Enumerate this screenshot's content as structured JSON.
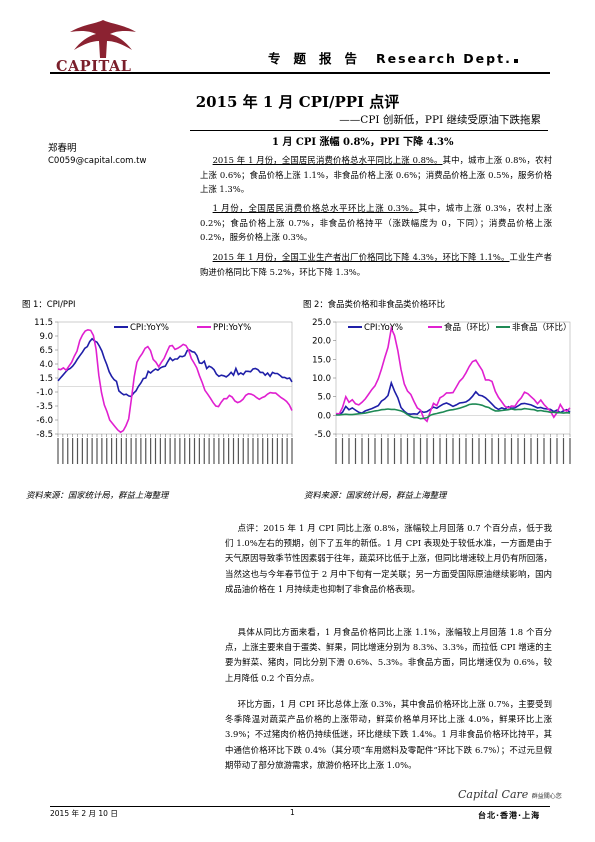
{
  "header": {
    "logo_text": "CAPITAL",
    "doc_type_cn": "专题报告",
    "dept": "Research Dept."
  },
  "title": {
    "main": "2015 年 1 月 CPI/PPI 点评",
    "sub": "——CPI 创新低，PPI 继续受原油下跌拖累"
  },
  "author": {
    "name": "郑春明",
    "email": "C0059@capital.com.tw"
  },
  "summary": {
    "headline": "1 月 CPI 涨幅 0.8%，PPI 下降 4.3%",
    "p1_u": "2015 年 1 月份，全国居民消费价格总水平同比上涨 0.8%。",
    "p1_rest": "其中，城市上涨 0.8%，农村上涨 0.6%；食品价格上涨 1.1%，非食品价格上涨 0.6%；消费品价格上涨 0.5%，服务价格上涨 1.3%。",
    "p2_u": "1 月份，全国居民消费价格总水平环比上涨 0.3%。",
    "p2_rest": "其中，城市上涨 0.3%，农村上涨 0.2%；食品价格上涨 0.7%，非食品价格持平（涨跌幅度为 0，下同）；消费品价格上涨 0.2%，服务价格上涨 0.3%。",
    "p3_u": "2015 年 1 月份，全国工业生产者出厂价格同比下降 4.3%，环比下降 1.1%。",
    "p3_rest": "工业生产者购进价格同比下降 5.2%，环比下降 1.3%。"
  },
  "figures": {
    "fig1_caption": "图 1：CPI/PPI",
    "fig2_caption": "图 2：食品类价格和非食品类价格环比",
    "source1": "资料来源：国家统计局，群益上海整理",
    "source2": "资料来源：国家统计局，群益上海整理"
  },
  "chart_data": [
    {
      "type": "line",
      "title": "",
      "ylim": [
        -8.5,
        11.5
      ],
      "yticks": [
        11.5,
        9.0,
        6.5,
        4.0,
        1.5,
        -1.0,
        -3.5,
        -6.0,
        -8.5
      ],
      "ytick_labels": [
        "11.5",
        "9.0",
        "6.5",
        "4.0",
        "1.5",
        "-1.0",
        "-3.5",
        "-6.0",
        "-8.5"
      ],
      "legend_position": "top",
      "series": [
        {
          "name": "CPI:YoY%",
          "color": "#1f1fa8",
          "values": [
            1.0,
            1.5,
            2.0,
            2.5,
            3.0,
            3.2,
            3.6,
            4.2,
            4.9,
            5.5,
            6.1,
            6.8,
            7.1,
            8.0,
            8.5,
            8.1,
            7.9,
            7.2,
            6.3,
            5.0,
            3.9,
            2.6,
            1.8,
            1.2,
            0.9,
            -0.8,
            -1.2,
            -1.5,
            -1.4,
            -1.7,
            -1.8,
            -1.2,
            -0.8,
            0.0,
            0.6,
            1.4,
            1.5,
            2.7,
            2.4,
            2.8,
            3.1,
            2.9,
            3.3,
            3.5,
            3.6,
            4.4,
            5.1,
            4.6,
            4.9,
            4.9,
            5.4,
            5.3,
            5.5,
            6.4,
            6.5,
            6.2,
            6.1,
            5.5,
            4.2,
            4.1,
            4.5,
            3.2,
            3.6,
            3.4,
            3.0,
            2.2,
            1.8,
            2.0,
            1.9,
            1.7,
            2.0,
            2.5,
            2.0,
            3.2,
            2.1,
            2.4,
            2.1,
            2.7,
            2.7,
            2.6,
            3.1,
            3.2,
            3.0,
            2.5,
            2.5,
            2.0,
            2.4,
            1.8,
            2.5,
            2.3,
            2.3,
            2.0,
            1.6,
            1.6,
            1.4,
            1.5,
            0.8
          ]
        },
        {
          "name": "PPI:YoY%",
          "color": "#e020d0",
          "values": [
            3.1,
            3.0,
            3.3,
            2.9,
            3.6,
            4.3,
            5.4,
            6.3,
            8.2,
            9.2,
            9.9,
            10.1,
            10.0,
            9.1,
            6.6,
            2.0,
            -1.1,
            -3.3,
            -4.5,
            -6.0,
            -6.6,
            -7.2,
            -7.8,
            -8.2,
            -7.9,
            -7.0,
            -5.8,
            -2.1,
            1.7,
            4.3,
            5.2,
            5.9,
            6.8,
            7.1,
            6.4,
            4.8,
            4.3,
            3.5,
            4.3,
            5.0,
            6.1,
            7.2,
            7.3,
            6.6,
            6.8,
            7.1,
            7.5,
            7.3,
            6.5,
            5.0,
            4.2,
            3.3,
            1.9,
            0.7,
            -0.7,
            -1.4,
            -2.1,
            -2.9,
            -3.5,
            -3.6,
            -2.8,
            -2.2,
            -2.2,
            -1.6,
            -1.9,
            -2.6,
            -2.9,
            -2.7,
            -2.3,
            -1.6,
            -1.3,
            -1.4,
            -1.6,
            -2.0,
            -2.3,
            -2.0,
            -1.8,
            -1.4,
            -1.1,
            -1.2,
            -1.2,
            -1.6,
            -2.0,
            -2.3,
            -2.7,
            -3.3,
            -4.3
          ]
        }
      ]
    },
    {
      "type": "line",
      "title": "",
      "ylim": [
        -5.0,
        25.0
      ],
      "yticks": [
        25.0,
        20.0,
        15.0,
        10.0,
        5.0,
        0.0,
        -5.0
      ],
      "ytick_labels": [
        "25.0",
        "20.0",
        "15.0",
        "10.0",
        "5.0",
        "0.0",
        "-5.0"
      ],
      "legend_position": "top",
      "series": [
        {
          "name": "CPI:YoY%",
          "color": "#1f1fa8",
          "values": [
            0.4,
            0.2,
            0.8,
            2.4,
            1.5,
            2.0,
            1.4,
            0.8,
            0.6,
            1.2,
            1.5,
            1.8,
            2.2,
            2.6,
            3.8,
            4.4,
            5.3,
            8.7,
            6.5,
            4.7,
            2.1,
            1.1,
            0.4,
            0.3,
            0.4,
            0.3,
            1.2,
            0.8,
            1.0,
            1.6,
            2.2,
            1.9,
            2.5,
            3.0,
            3.3,
            2.9,
            2.4,
            2.8,
            3.3,
            3.4,
            3.6,
            4.2,
            5.1,
            6.3,
            5.4,
            5.2,
            4.7,
            3.9,
            3.0,
            2.1,
            1.6,
            2.0,
            1.7,
            2.3,
            1.9,
            2.0,
            2.5,
            3.1,
            3.2,
            3.0,
            2.8,
            2.4,
            2.0,
            2.1,
            1.8,
            1.7,
            1.6,
            1.0,
            1.4,
            0.7,
            1.2,
            1.5,
            0.8
          ]
        },
        {
          "name": "食品（环比）",
          "color": "#e020d0",
          "values": [
            0.5,
            0.4,
            2.1,
            5.0,
            3.5,
            4.2,
            3.1,
            2.8,
            3.5,
            4.4,
            5.6,
            6.9,
            7.9,
            9.8,
            12.4,
            15.5,
            18.2,
            23.3,
            21.4,
            17.4,
            12.3,
            8.4,
            6.5,
            5.6,
            3.7,
            2.0,
            1.4,
            -0.8,
            -1.6,
            1.0,
            3.2,
            2.6,
            4.7,
            5.2,
            6.0,
            6.0,
            6.1,
            7.6,
            9.1,
            10.0,
            11.4,
            13.1,
            14.4,
            14.8,
            13.4,
            12.0,
            9.5,
            9.5,
            9.1,
            6.4,
            4.8,
            3.6,
            2.4,
            2.0,
            2.5,
            2.4,
            3.7,
            4.7,
            6.2,
            5.8,
            5.0,
            4.2,
            3.1,
            4.1,
            2.9,
            2.0,
            1.1,
            -0.5,
            0.7,
            2.9,
            1.5,
            1.1,
            2.0
          ]
        },
        {
          "name": "非食品（环比）",
          "color": "#1f8a55",
          "values": [
            0.1,
            0.1,
            0.2,
            0.3,
            0.2,
            0.2,
            0.3,
            0.4,
            0.5,
            0.6,
            0.8,
            1.0,
            1.2,
            1.3,
            1.5,
            1.6,
            1.7,
            1.6,
            1.6,
            1.4,
            1.2,
            0.8,
            0.2,
            -0.3,
            -0.6,
            -0.6,
            -0.9,
            -0.8,
            -0.6,
            0.0,
            0.3,
            0.5,
            0.7,
            0.9,
            1.2,
            1.4,
            1.5,
            1.7,
            1.9,
            2.2,
            2.5,
            2.9,
            3.0,
            3.0,
            2.9,
            2.7,
            2.3,
            2.1,
            1.6,
            1.2,
            1.2,
            1.3,
            1.4,
            1.5,
            1.7,
            1.5,
            1.6,
            1.6,
            1.8,
            1.7,
            1.6,
            1.5,
            1.2,
            1.3,
            1.1,
            1.0,
            0.8,
            0.8,
            0.7,
            0.7,
            0.6,
            0.7,
            0.6
          ]
        }
      ]
    }
  ],
  "body": {
    "p1": "点评：2015 年 1 月 CPI 同比上涨 0.8%，涨幅较上月回落 0.7 个百分点，低于我们 1.0%左右的预期，创下了五年的新低。1 月 CPI 表现处于较低水准，一方面是由于天气原因导致季节性因素弱于往年，蔬菜环比低于上涨，但同比增速较上月仍有所回落，当然这也与今年春节位于 2 月中下旬有一定关联；另一方面受国际原油继续影响，国内成品油价格在 1 月持续走也抑制了非食品价格表现。",
    "p2": "具体从同比方面来看，1 月食品价格同比上涨 1.1%，涨幅较上月回落 1.8 个百分点，上涨主要来自于蛋类、鲜果，同比增速分别为 8.3%、3.3%，而拉低 CPI 增速的主要为鲜菜、猪肉，同比分别下滑 0.6%、5.3%。非食品方面，同比增速仅为 0.6%，较上月降低 0.2 个百分点。",
    "p3": "环比方面，1 月 CPI 环比总体上涨 0.3%，其中食品价格环比上涨 0.7%，主要受到冬季降温对蔬菜产品价格的上涨带动，鲜菜价格单月环比上涨 4.0%，鲜果环比上涨 3.9%；不过猪肉价格仍持续低迷，环比继续下跌 1.4%。1 月非食品价格环比持平，其中通信价格环比下跌 0.4%（其分项“车用燃料及零配件”环比下跌 6.7%）；不过元旦假期带动了部分旅游需求，旅游价格环比上涨 1.0%。"
  },
  "footer": {
    "date": "2015 年 2 月 10 日",
    "page": "1",
    "brand": "Capital Care",
    "brand_cn": "群益關心您",
    "cities": "台北·香港·上海"
  }
}
